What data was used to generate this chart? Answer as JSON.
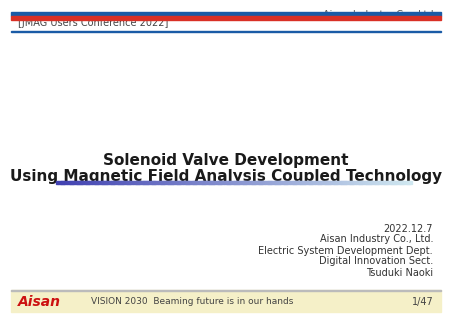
{
  "company": "Aisan Industry Co., Ltd.",
  "conference": "[JMAG Users Conference 2022]",
  "title_line1": "Solenoid Valve Development",
  "title_line2": "Using Magnetic Field Analysis Coupled Technology",
  "date": "2022.12.7",
  "affiliation1": "Aisan Industry Co., Ltd.",
  "affiliation2": "Electric System Development Dept.",
  "affiliation3": "Digital Innovation Sect.",
  "affiliation4": "Tsuduki Naoki",
  "footer_logo": "Aisan",
  "footer_slogan": "VISION 2030  Beaming future is in our hands",
  "page": "1/47",
  "stripe_blue": "#1a5ba6",
  "stripe_red": "#d93025",
  "header_separator_blue": "#1a5ba6",
  "footer_bg": "#f5f0c8",
  "footer_border": "#bbbbbb",
  "footer_text_color": "#444444",
  "title_color": "#1a1a1a",
  "company_color": "#555555",
  "conference_color": "#444444",
  "affiliation_color": "#333333",
  "logo_red": "#cc1111",
  "underline_left": "#4040b0",
  "underline_right": "#d0e8f0"
}
